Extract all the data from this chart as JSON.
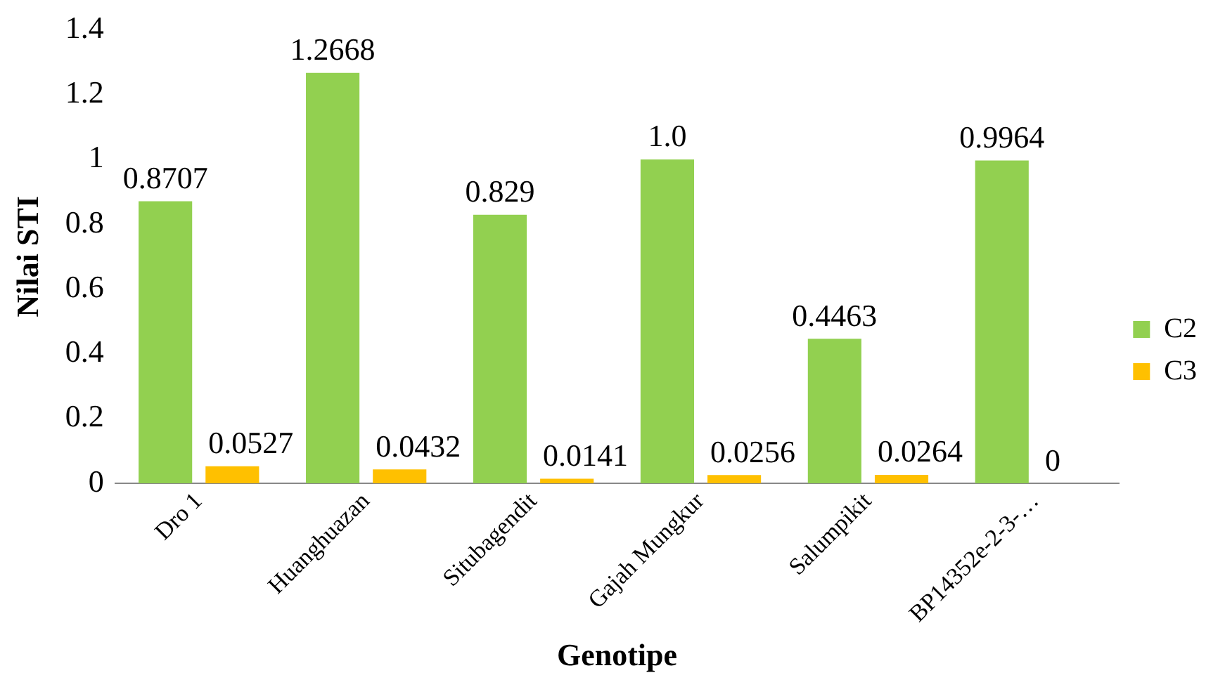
{
  "chart_data": {
    "type": "bar",
    "xlabel": "Genotipe",
    "ylabel": "Nilai STI",
    "categories": [
      "Dro 1",
      "Huanghuazan",
      "Situbagendit",
      "Gajah Mungkur",
      "Salumpikit",
      "BP14352e-2-3-…"
    ],
    "series": [
      {
        "name": "C2",
        "color": "#92d050",
        "values": [
          0.8707,
          1.2668,
          0.829,
          1.0,
          0.4463,
          0.9964
        ],
        "value_labels": [
          "0.8707",
          "1.2668",
          "0.829",
          "1.0",
          "0.4463",
          "0.9964"
        ]
      },
      {
        "name": "C3",
        "color": "#ffc000",
        "values": [
          0.0527,
          0.0432,
          0.0141,
          0.0256,
          0.0264,
          0
        ],
        "value_labels": [
          "0.0527",
          "0.0432",
          "0.0141",
          "0.0256",
          "0.0264",
          "0"
        ]
      }
    ],
    "ylim": [
      0,
      1.4
    ],
    "yticks": [
      0,
      0.2,
      0.4,
      0.6,
      0.8,
      1,
      1.2,
      1.4
    ],
    "grid": false,
    "legend": "right"
  }
}
